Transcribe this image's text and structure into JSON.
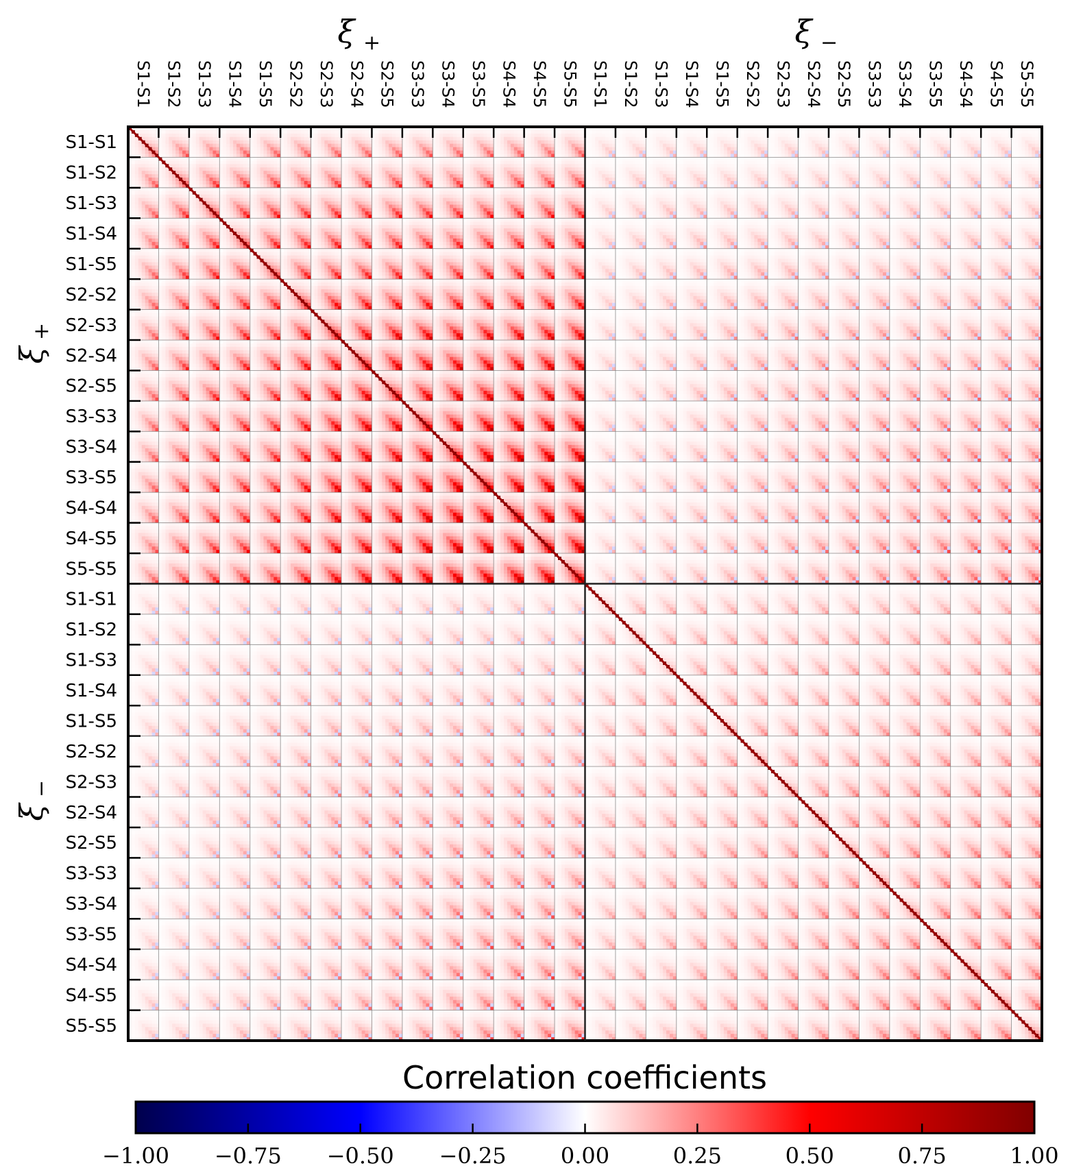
{
  "chart_data": {
    "type": "heatmap",
    "title": "",
    "colorbar": {
      "label": "Correlation coefficients",
      "range": [
        -1.0,
        1.0
      ],
      "ticks": [
        -1.0,
        -0.75,
        -0.5,
        -0.25,
        0.0,
        0.25,
        0.5,
        0.75,
        1.0
      ],
      "tick_labels": [
        "−1.00",
        "−0.75",
        "−0.50",
        "−0.25",
        "0.00",
        "0.25",
        "0.50",
        "0.75",
        "1.00"
      ],
      "colormap": "seismic",
      "colors": {
        "neg_end": "#00004c",
        "neg_mid": "#0000ff",
        "zero": "#ffffff",
        "pos_mid": "#ff0000",
        "pos_end": "#800000"
      }
    },
    "blocks": [
      {
        "label": "ξ+",
        "symbol": "ξ",
        "subscript": "+"
      },
      {
        "label": "ξ−",
        "symbol": "ξ",
        "subscript": "−"
      }
    ],
    "bin_pairs": [
      "S1-S1",
      "S1-S2",
      "S1-S3",
      "S1-S4",
      "S1-S5",
      "S2-S2",
      "S2-S3",
      "S2-S4",
      "S2-S5",
      "S3-S3",
      "S3-S4",
      "S3-S5",
      "S4-S4",
      "S4-S5",
      "S5-S5"
    ],
    "angular_bins_per_pair": 9,
    "diagonal_value": 1.0,
    "quadrant_peak_correlation": {
      "xi_plus_xi_plus": {
        "S1-S1": 0.35,
        "S1-S2": 0.45,
        "S1-S3": 0.5,
        "S1-S4": 0.52,
        "S1-S5": 0.52,
        "S2-S2": 0.6,
        "S2-S3": 0.68,
        "S2-S4": 0.72,
        "S2-S5": 0.72,
        "S3-S3": 0.78,
        "S3-S4": 0.82,
        "S3-S5": 0.82,
        "S4-S4": 0.85,
        "S4-S5": 0.86,
        "S5-S5": 0.86
      },
      "xi_plus_xi_minus": 0.4,
      "xi_minus_xi_minus_offdiag": 0.35
    },
    "block_boundary_lines": true,
    "grid": true
  }
}
